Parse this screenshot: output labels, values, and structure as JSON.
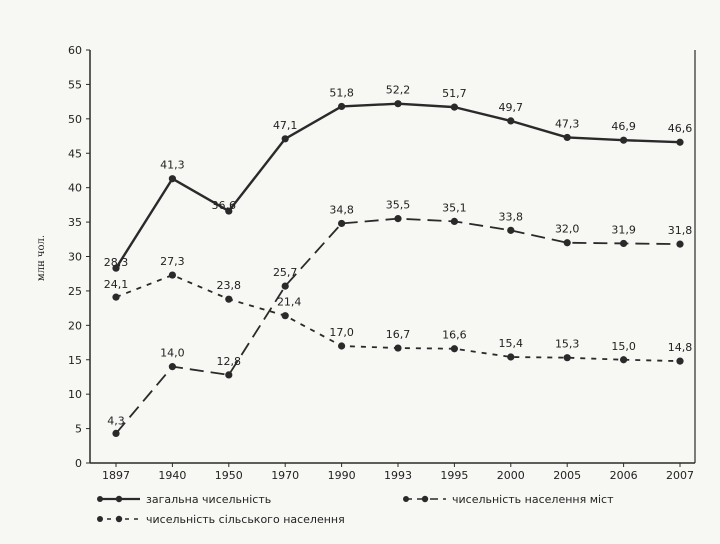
{
  "chart_data": {
    "type": "line",
    "ylabel": "млн чол.",
    "ylim": [
      0,
      60
    ],
    "yticks": [
      "0",
      "5",
      "10",
      "15",
      "20",
      "25",
      "30",
      "35",
      "40",
      "45",
      "50",
      "55",
      "60"
    ],
    "categories": [
      "1897",
      "1940",
      "1950",
      "1970",
      "1990",
      "1993",
      "1995",
      "2000",
      "2005",
      "2006",
      "2007"
    ],
    "series": [
      {
        "name": "загальна чисельність",
        "style": "solid",
        "values": [
          28.3,
          41.3,
          36.6,
          47.1,
          51.8,
          52.2,
          51.7,
          49.7,
          47.3,
          46.9,
          46.6
        ],
        "labels": [
          "28,3",
          "41,3",
          "36,6",
          "47,1",
          "51,8",
          "52,2",
          "51,7",
          "49,7",
          "47,3",
          "46,9",
          "46,6"
        ]
      },
      {
        "name": "чисельність населення міст",
        "style": "longdash",
        "values": [
          4.3,
          14.0,
          12.8,
          25.7,
          34.8,
          35.5,
          35.1,
          33.8,
          32.0,
          31.9,
          31.8
        ],
        "labels": [
          "4,3",
          "14,0",
          "12,8",
          "25,7",
          "34,8",
          "35,5",
          "35,1",
          "33,8",
          "32,0",
          "31,9",
          "31,8"
        ]
      },
      {
        "name": "чисельність сільського населення",
        "style": "shortdash",
        "values": [
          24.1,
          27.3,
          23.8,
          21.4,
          17.0,
          16.7,
          16.6,
          15.4,
          15.3,
          15.0,
          14.8
        ],
        "labels": [
          "24,1",
          "27,3",
          "23,8",
          "21,4",
          "17,0",
          "16,7",
          "16,6",
          "15,4",
          "15,3",
          "15,0",
          "14,8"
        ]
      }
    ],
    "legend_position": "bottom",
    "grid": false,
    "line_color": "#2a2a2a"
  }
}
